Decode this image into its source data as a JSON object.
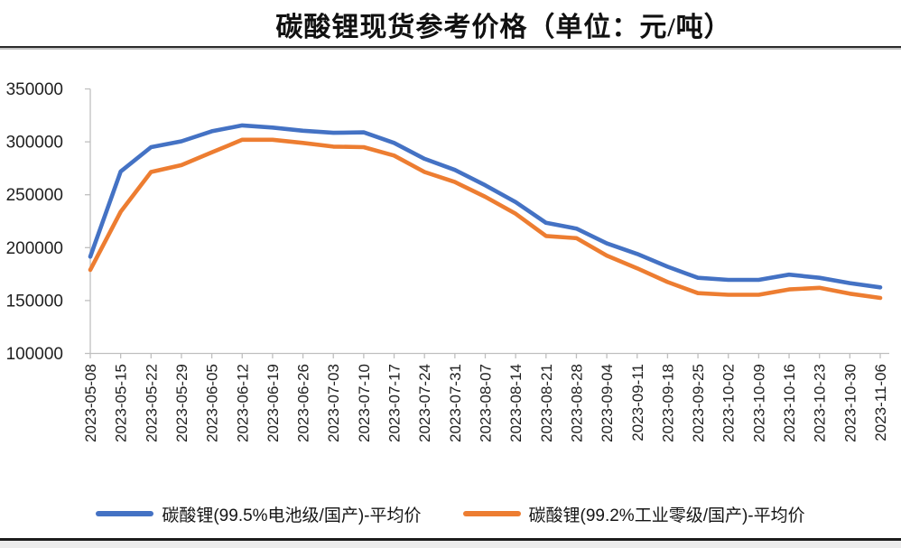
{
  "page": {
    "title": "碳酸锂现货参考价格（单位：元/吨）"
  },
  "chart_data": {
    "type": "line",
    "title": "碳酸锂现货参考价格（单位：元/吨）",
    "unit": "元/吨",
    "grid": false,
    "legend_position": "bottom",
    "axis_color": "#BFBFBF",
    "label_color": "#1f1f1f",
    "ylim": [
      100000,
      350000
    ],
    "y_ticks": [
      100000,
      150000,
      200000,
      250000,
      300000,
      350000
    ],
    "categories": [
      "2023-05-08",
      "2023-05-15",
      "2023-05-22",
      "2023-05-29",
      "2023-06-05",
      "2023-06-12",
      "2023-06-19",
      "2023-06-26",
      "2023-07-03",
      "2023-07-10",
      "2023-07-17",
      "2023-07-24",
      "2023-07-31",
      "2023-08-07",
      "2023-08-14",
      "2023-08-21",
      "2023-08-28",
      "2023-09-04",
      "2023-09-11",
      "2023-09-18",
      "2023-09-25",
      "2023-10-02",
      "2023-10-09",
      "2023-10-16",
      "2023-10-23",
      "2023-10-30",
      "2023-11-06"
    ],
    "series": [
      {
        "name": "碳酸锂(99.5%电池级/国产)-平均价",
        "color": "#4472C4",
        "values": [
          191500,
          272000,
          295000,
          300500,
          310000,
          315500,
          313500,
          310500,
          308500,
          309000,
          299000,
          284000,
          273500,
          259000,
          243000,
          223500,
          218000,
          204000,
          194000,
          182000,
          171500,
          169500,
          169500,
          174500,
          171500,
          166500,
          162500
        ]
      },
      {
        "name": "碳酸锂(99.2%工业零级/国产)-平均价",
        "color": "#ED7D31",
        "values": [
          179000,
          234000,
          271500,
          278000,
          290000,
          302000,
          302000,
          299000,
          295500,
          295000,
          287000,
          271500,
          262000,
          248000,
          232000,
          211000,
          209000,
          192500,
          180500,
          167500,
          157000,
          155500,
          155500,
          160500,
          162000,
          156500,
          152500
        ]
      }
    ]
  }
}
